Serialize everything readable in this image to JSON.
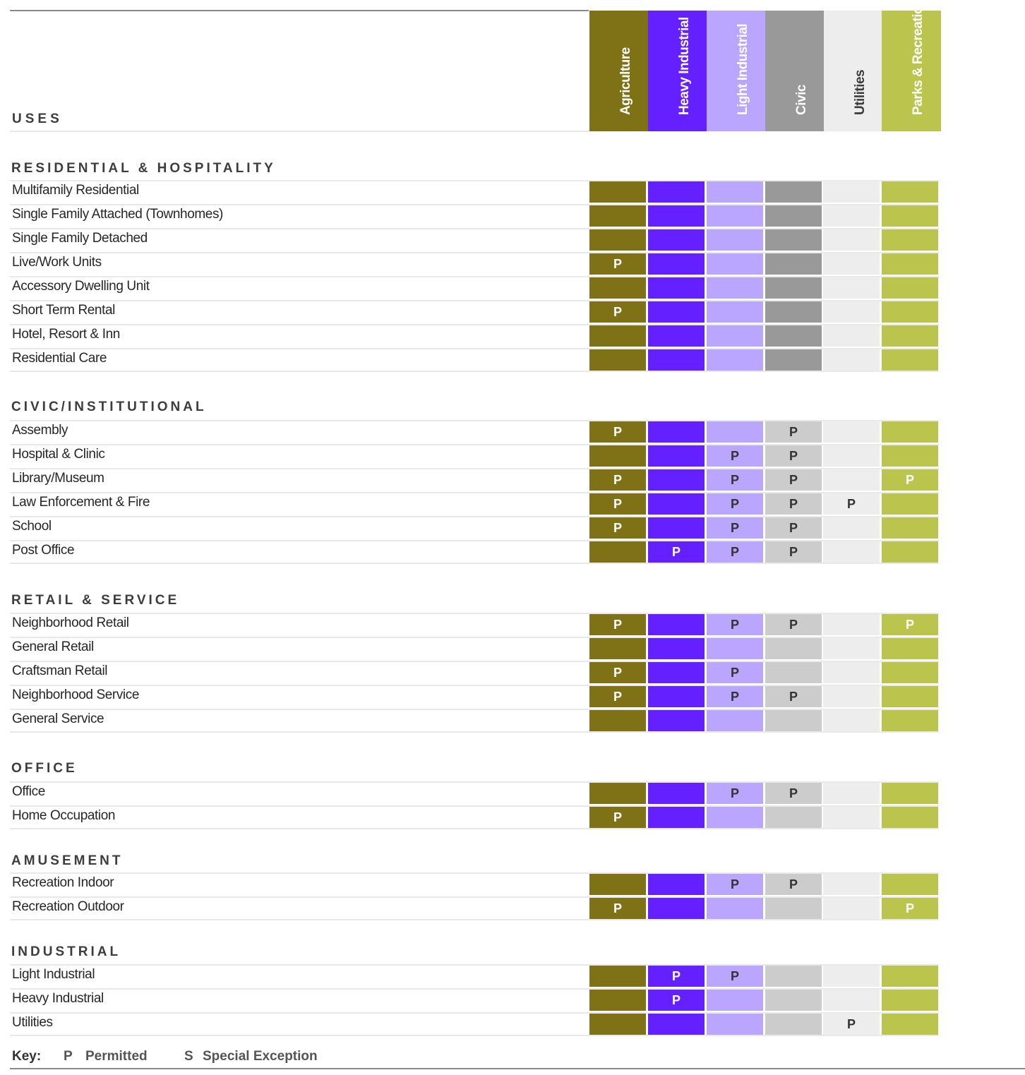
{
  "header": {
    "uses_label": "USES",
    "columns": [
      {
        "label": "Agriculture",
        "color": "#7f7116",
        "text_color": "#ffffff"
      },
      {
        "label": "Heavy Industrial",
        "color": "#6520ff",
        "text_color": "#ffffff"
      },
      {
        "label": "Light Industrial",
        "color": "#bba6ff",
        "text_color": "#ffffff"
      },
      {
        "label": "Civic",
        "color": "#999999",
        "text_color": "#ffffff"
      },
      {
        "label": "Utilities",
        "color": "#ededed",
        "text_color": "#3a3a3a"
      },
      {
        "label": "Parks & Recreation",
        "color": "#bbc44d",
        "text_color": "#ffffff"
      }
    ]
  },
  "cell_colors": {
    "agriculture": "#7f7116",
    "heavy_industrial": "#6520ff",
    "light_industrial": "#bba6ff",
    "civic_dark": "#999999",
    "civic_light": "#cccccc",
    "utilities": "#ededed",
    "parks": "#bbc44d"
  },
  "sections": [
    {
      "title": "RESIDENTIAL & HOSPITALITY",
      "civic_shade": "dark",
      "rows": [
        {
          "use": "Multifamily Residential",
          "cells": [
            "",
            "",
            "",
            "",
            "",
            ""
          ]
        },
        {
          "use": "Single Family Attached (Townhomes)",
          "cells": [
            "",
            "",
            "",
            "",
            "",
            ""
          ]
        },
        {
          "use": "Single Family Detached",
          "cells": [
            "",
            "",
            "",
            "",
            "",
            ""
          ]
        },
        {
          "use": "Live/Work Units",
          "cells": [
            "P",
            "",
            "",
            "",
            "",
            ""
          ]
        },
        {
          "use": "Accessory Dwelling Unit",
          "cells": [
            "",
            "",
            "",
            "",
            "",
            ""
          ]
        },
        {
          "use": "Short Term Rental",
          "cells": [
            "P",
            "",
            "",
            "",
            "",
            ""
          ]
        },
        {
          "use": "Hotel, Resort & Inn",
          "cells": [
            "",
            "",
            "",
            "",
            "",
            ""
          ]
        },
        {
          "use": "Residential Care",
          "cells": [
            "",
            "",
            "",
            "",
            "",
            ""
          ]
        }
      ]
    },
    {
      "title": "CIVIC/INSTITUTIONAL",
      "civic_shade": "light",
      "rows": [
        {
          "use": "Assembly",
          "cells": [
            "P",
            "",
            "",
            "P",
            "",
            ""
          ]
        },
        {
          "use": "Hospital & Clinic",
          "cells": [
            "",
            "",
            "P",
            "P",
            "",
            ""
          ]
        },
        {
          "use": "Library/Museum",
          "cells": [
            "P",
            "",
            "P",
            "P",
            "",
            "P"
          ]
        },
        {
          "use": "Law Enforcement & Fire",
          "cells": [
            "P",
            "",
            "P",
            "P",
            "P",
            ""
          ]
        },
        {
          "use": "School",
          "cells": [
            "P",
            "",
            "P",
            "P",
            "",
            ""
          ]
        },
        {
          "use": "Post Office",
          "cells": [
            "",
            "P",
            "P",
            "P",
            "",
            ""
          ]
        }
      ]
    },
    {
      "title": "RETAIL & SERVICE",
      "civic_shade": "light",
      "rows": [
        {
          "use": "Neighborhood Retail",
          "cells": [
            "P",
            "",
            "P",
            "P",
            "",
            "P"
          ]
        },
        {
          "use": "General Retail",
          "cells": [
            "",
            "",
            "",
            "",
            "",
            ""
          ]
        },
        {
          "use": "Craftsman Retail",
          "cells": [
            "P",
            "",
            "P",
            "",
            "",
            ""
          ]
        },
        {
          "use": "Neighborhood Service",
          "cells": [
            "P",
            "",
            "P",
            "P",
            "",
            ""
          ]
        },
        {
          "use": "General Service",
          "cells": [
            "",
            "",
            "",
            "",
            "",
            ""
          ]
        }
      ]
    },
    {
      "title": "OFFICE",
      "civic_shade": "light",
      "rows": [
        {
          "use": "Office",
          "cells": [
            "",
            "",
            "P",
            "P",
            "",
            ""
          ]
        },
        {
          "use": "Home Occupation",
          "cells": [
            "P",
            "",
            "",
            "",
            "",
            ""
          ]
        }
      ]
    },
    {
      "title": "AMUSEMENT",
      "civic_shade": "light",
      "rows": [
        {
          "use": "Recreation Indoor",
          "cells": [
            "",
            "",
            "P",
            "P",
            "",
            ""
          ]
        },
        {
          "use": "Recreation Outdoor",
          "cells": [
            "P",
            "",
            "",
            "",
            "",
            "P"
          ]
        }
      ]
    },
    {
      "title": "INDUSTRIAL",
      "civic_shade": "light",
      "rows": [
        {
          "use": "Light Industrial",
          "cells": [
            "",
            "P",
            "P",
            "",
            "",
            ""
          ]
        },
        {
          "use": "Heavy Industrial",
          "cells": [
            "",
            "P",
            "",
            "",
            "",
            ""
          ]
        },
        {
          "use": "Utilities",
          "cells": [
            "",
            "",
            "",
            "",
            "P",
            ""
          ]
        }
      ]
    }
  ],
  "key": {
    "label": "Key:",
    "p_symbol": "P",
    "p_text": "Permitted",
    "s_symbol": "S",
    "s_text": "Special Exception"
  }
}
